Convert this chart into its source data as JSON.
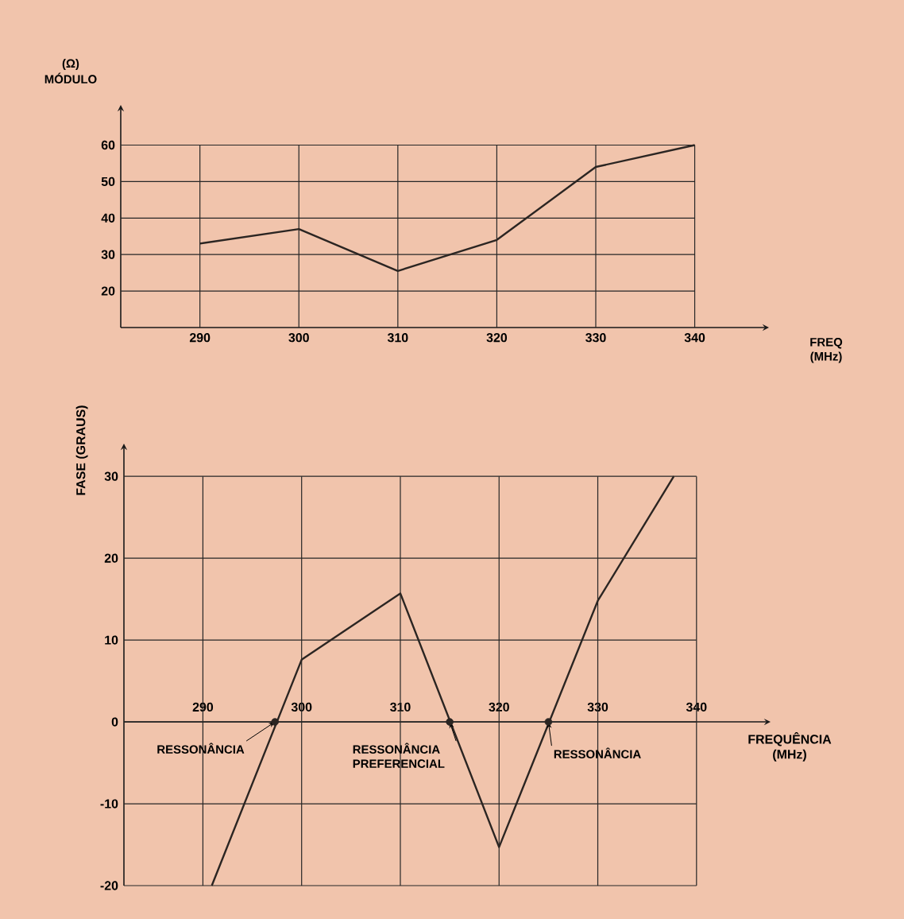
{
  "chart_data": [
    {
      "type": "line",
      "ylabel": "(Ω) MÓDULO",
      "xlabel": "FREQ (MHz)",
      "x": [
        290,
        300,
        310,
        320,
        330,
        340
      ],
      "values": [
        33,
        37,
        25.5,
        34,
        54,
        60
      ],
      "color": "#2b2522",
      "xlim": [
        282,
        347.5
      ],
      "ylim": [
        10,
        71
      ],
      "xticks": [
        290,
        300,
        310,
        320,
        330,
        340
      ],
      "yticks": [
        20,
        30,
        40,
        50,
        60
      ],
      "grid": true
    },
    {
      "type": "line",
      "ylabel": "FASE (GRAUS)",
      "xlabel": "FREQUÊNCIA (MHz)",
      "xlim": [
        282,
        347.5
      ],
      "ylim": [
        -20,
        34
      ],
      "xticks": [
        290,
        300,
        310,
        320,
        330,
        340
      ],
      "yticks": [
        -20,
        -10,
        0,
        10,
        20,
        30
      ],
      "grid": true,
      "series": [
        {
          "x": [
            290.9,
            300,
            310,
            320,
            330,
            337.7
          ],
          "values": [
            -20,
            7.6,
            15.7,
            -15.3,
            14.8,
            30
          ],
          "color": "#2b2522"
        },
        {
          "type": "scatter",
          "x": [
            297.3,
            315,
            325
          ],
          "values": [
            0,
            0,
            0
          ],
          "color": "#2b2522",
          "marker": "circle"
        }
      ],
      "annotations": [
        {
          "text": "RESSONÂNCIA",
          "x": 297.3,
          "y": 0
        },
        {
          "text": "RESSONÂNCIA PREFERENCIAL",
          "x": 315,
          "y": 0
        },
        {
          "text": "RESSONÂNCIA",
          "x": 325,
          "y": 0
        }
      ]
    }
  ]
}
